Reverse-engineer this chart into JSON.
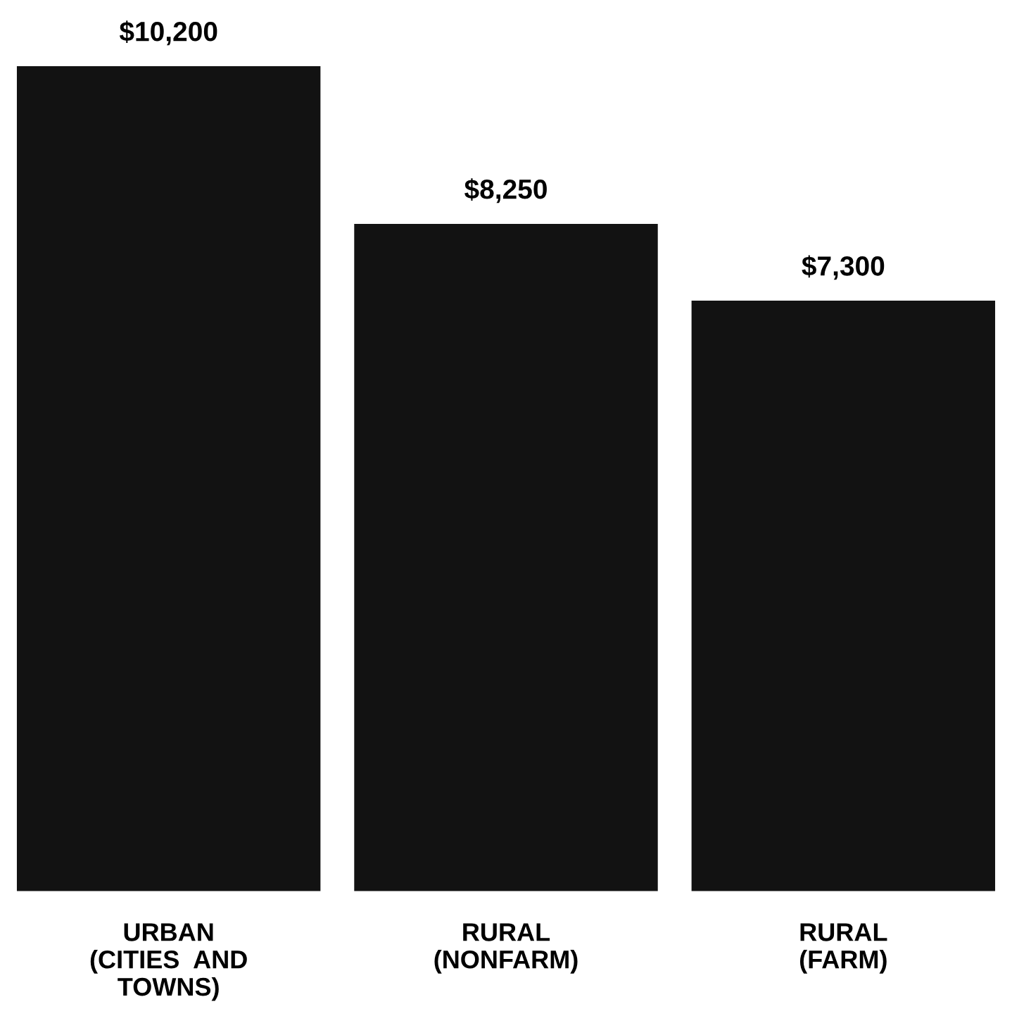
{
  "chart_data": {
    "type": "bar",
    "categories": [
      "URBAN\n(CITIES  AND\nTOWNS)",
      "RURAL\n(NONFARM)",
      "RURAL\n(FARM)"
    ],
    "values": [
      10200,
      8250,
      7300
    ],
    "value_labels": [
      "$10,200",
      "$8,250",
      "$7,300"
    ],
    "color": "#121212",
    "grid": false,
    "legend": false,
    "tick_labels": "x"
  }
}
